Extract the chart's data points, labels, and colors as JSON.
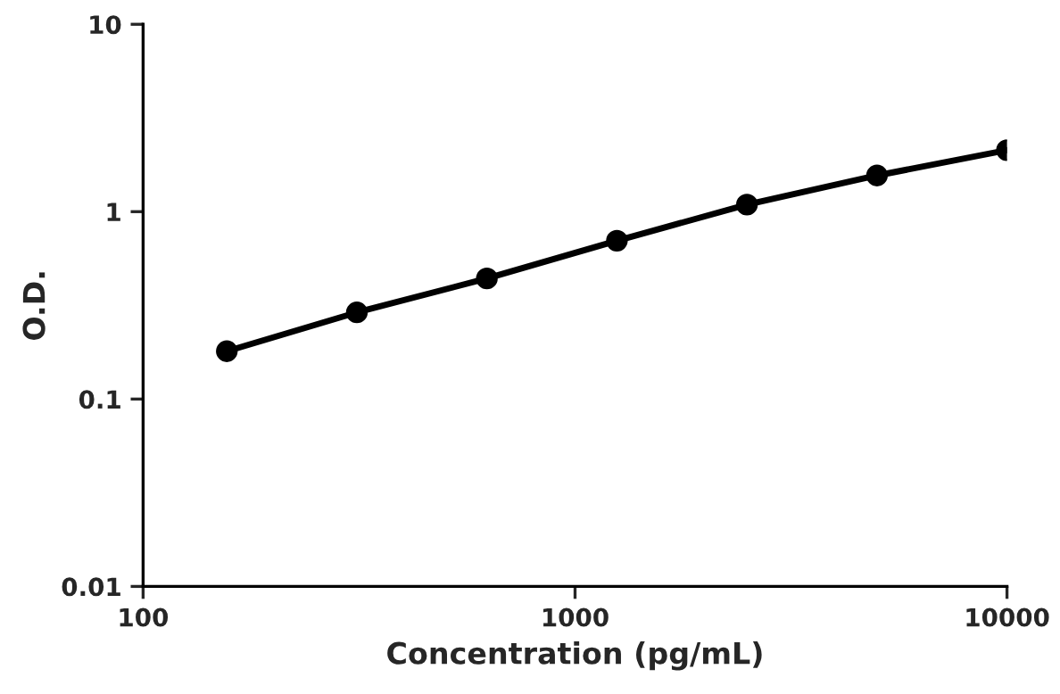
{
  "chart_data": {
    "type": "line",
    "xlabel": "Concentration (pg/mL)",
    "ylabel": "O.D.",
    "log": "xy",
    "x": [
      156.25,
      312.5,
      625,
      1250,
      2500,
      5000,
      10000
    ],
    "series": [
      {
        "color": "#000000",
        "values": [
          0.18,
          0.29,
          0.44,
          0.7,
          1.09,
          1.56,
          2.13
        ]
      }
    ],
    "xlim": [
      100,
      10000
    ],
    "xticks": [
      100,
      1000,
      10000
    ],
    "ylim": [
      0.01,
      10
    ],
    "yticks": [
      0.01,
      0.1,
      1,
      10
    ],
    "marker": "circle",
    "line_style": "solid",
    "grid": false,
    "legend": false
  }
}
